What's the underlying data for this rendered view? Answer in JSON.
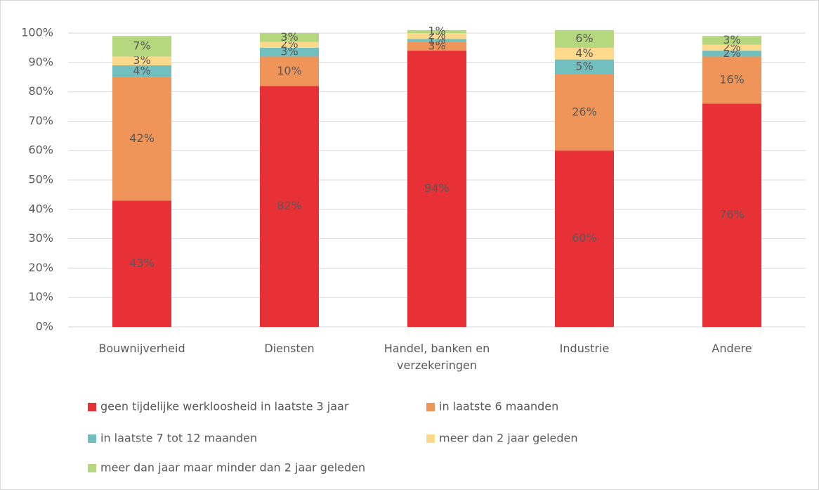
{
  "chart_data": {
    "type": "stacked_bar",
    "categories": [
      "Bouwnijverheid",
      "Diensten",
      "Handel, banken en verzekeringen",
      "Industrie",
      "Andere"
    ],
    "series": [
      {
        "name": "geen tijdelijke werkloosheid in laatste 3 jaar",
        "color": "#e83136",
        "values": [
          43,
          82,
          94,
          60,
          76
        ],
        "value_labels": [
          "43%",
          "82%",
          "94%",
          "60%",
          "76%"
        ]
      },
      {
        "name": "in laatste 6 maanden",
        "color": "#f0955a",
        "values": [
          42,
          10,
          3,
          26,
          16
        ],
        "value_labels": [
          "42%",
          "10%",
          "3%",
          "26%",
          "16%"
        ]
      },
      {
        "name": "in laatste 7 tot 12 maanden",
        "color": "#72bfbf",
        "values": [
          4,
          3,
          1,
          5,
          2
        ],
        "value_labels": [
          "4%",
          "3%",
          "1%",
          "5%",
          "2%"
        ]
      },
      {
        "name": "meer dan 2 jaar geleden",
        "color": "#fdd98b",
        "values": [
          3,
          2,
          2,
          4,
          2
        ],
        "value_labels": [
          "3%",
          "2%",
          "2%",
          "4%",
          "2%"
        ]
      },
      {
        "name": "meer dan jaar maar minder dan 2 jaar geleden",
        "color": "#b5d77e",
        "values": [
          7,
          3,
          1,
          6,
          3
        ],
        "value_labels": [
          "7%",
          "3%",
          "1%",
          "6%",
          "3%"
        ]
      }
    ],
    "ylim": [
      0,
      100
    ],
    "yticks": [
      {
        "value": 0,
        "label": "0%"
      },
      {
        "value": 10,
        "label": "10%"
      },
      {
        "value": 20,
        "label": "20%"
      },
      {
        "value": 30,
        "label": "30%"
      },
      {
        "value": 40,
        "label": "40%"
      },
      {
        "value": 50,
        "label": "50%"
      },
      {
        "value": 60,
        "label": "60%"
      },
      {
        "value": 70,
        "label": "70%"
      },
      {
        "value": 80,
        "label": "80%"
      },
      {
        "value": 90,
        "label": "90%"
      },
      {
        "value": 100,
        "label": "100%"
      }
    ],
    "grid": true
  }
}
